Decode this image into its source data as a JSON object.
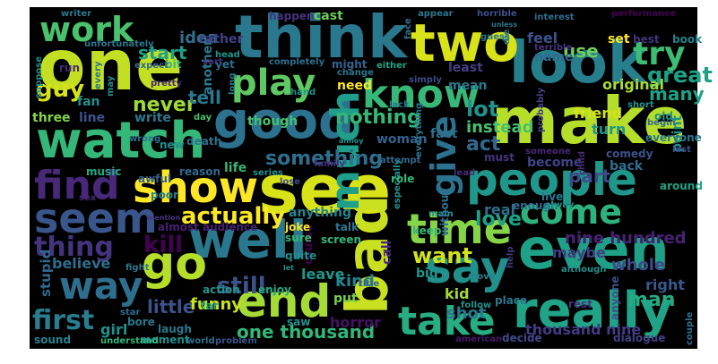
{
  "wordcloud": {
    "background": "#000000",
    "words": [
      {
        "text": "one",
        "color": "#c2df23"
      },
      {
        "text": "see",
        "color": "#d8e219"
      },
      {
        "text": "make",
        "color": "#b5de2b"
      },
      {
        "text": "think",
        "color": "#2a788e"
      },
      {
        "text": "look",
        "color": "#277f8e"
      },
      {
        "text": "watch",
        "color": "#35b779"
      },
      {
        "text": "good",
        "color": "#2c728e"
      },
      {
        "text": "two",
        "color": "#d8e219"
      },
      {
        "text": "bad",
        "color": "#c8e020"
      },
      {
        "text": "even",
        "color": "#1fa187"
      },
      {
        "text": "well",
        "color": "#2a788e"
      },
      {
        "text": "show",
        "color": "#fde725"
      },
      {
        "text": "really",
        "color": "#20a386"
      },
      {
        "text": "people",
        "color": "#1f988b"
      },
      {
        "text": "go",
        "color": "#b5de2b"
      },
      {
        "text": "time",
        "color": "#86d549"
      },
      {
        "text": "say",
        "color": "#21918c"
      },
      {
        "text": "end",
        "color": "#a5db36"
      },
      {
        "text": "take",
        "color": "#26ad81"
      },
      {
        "text": "seem",
        "color": "#39568c"
      },
      {
        "text": "way",
        "color": "#2e6e8e"
      },
      {
        "text": "find",
        "color": "#482878"
      },
      {
        "text": "work",
        "color": "#4ac16d"
      },
      {
        "text": "know",
        "color": "#37b878"
      },
      {
        "text": "play",
        "color": "#5ec962"
      },
      {
        "text": "much",
        "color": "#1f9e89"
      },
      {
        "text": "give",
        "color": "#2c728e"
      },
      {
        "text": "come",
        "color": "#2db27d"
      },
      {
        "text": "try",
        "color": "#3dbc74"
      },
      {
        "text": "thing",
        "color": "#46337e"
      },
      {
        "text": "first",
        "color": "#287d8e"
      },
      {
        "text": "kill",
        "color": "#440154"
      },
      {
        "text": "actually",
        "color": "#fde725"
      },
      {
        "text": "still",
        "color": "#3b528b"
      },
      {
        "text": "something",
        "color": "#2e6e8e"
      },
      {
        "text": "want",
        "color": "#d2e21b"
      },
      {
        "text": "love",
        "color": "#1fa187"
      },
      {
        "text": "nothing",
        "color": "#35b779"
      },
      {
        "text": "act",
        "color": "#31688e"
      },
      {
        "text": "lot",
        "color": "#21918c"
      },
      {
        "text": "part",
        "color": "#3e4a89"
      },
      {
        "text": "great",
        "color": "#1fa187"
      },
      {
        "text": "many",
        "color": "#1fa187"
      },
      {
        "text": "guy",
        "color": "#d8e219"
      },
      {
        "text": "never",
        "color": "#a0da39"
      },
      {
        "text": "tell",
        "color": "#2a788e"
      },
      {
        "text": "start",
        "color": "#1fa187"
      },
      {
        "text": "idea",
        "color": "#2e6e8e"
      },
      {
        "text": "use",
        "color": "#6ece58"
      },
      {
        "text": "feel",
        "color": "#3b528b"
      },
      {
        "text": "nine hundred",
        "color": "#482173"
      },
      {
        "text": "one thousand",
        "color": "#32b67a"
      },
      {
        "text": "thousand nine",
        "color": "#443983"
      },
      {
        "text": "man",
        "color": "#25ab82"
      },
      {
        "text": "little",
        "color": "#3b528b"
      },
      {
        "text": "kind",
        "color": "#26828e"
      },
      {
        "text": "whole",
        "color": "#3e4a89"
      },
      {
        "text": "right",
        "color": "#38598c"
      },
      {
        "text": "horror",
        "color": "#471164"
      },
      {
        "text": "believe",
        "color": "#2e6e8e"
      },
      {
        "text": "stupid",
        "color": "#31688e"
      },
      {
        "text": "girl",
        "color": "#21918c"
      },
      {
        "text": "funny",
        "color": "#c8e020"
      },
      {
        "text": "leave",
        "color": "#1f988b"
      },
      {
        "text": "put",
        "color": "#75d054"
      },
      {
        "text": "shot",
        "color": "#2a788e"
      },
      {
        "text": "kid",
        "color": "#a2da37"
      },
      {
        "text": "real",
        "color": "#2e6e8e"
      },
      {
        "text": "maybe",
        "color": "#433d84"
      },
      {
        "text": "instead",
        "color": "#46c06f"
      },
      {
        "text": "friend",
        "color": "#d5e21a"
      },
      {
        "text": "turn",
        "color": "#1f958b"
      },
      {
        "text": "original",
        "color": "#a8db34"
      },
      {
        "text": "mean",
        "color": "#29798e"
      },
      {
        "text": "least",
        "color": "#423f85"
      },
      {
        "text": "need",
        "color": "#fde725"
      },
      {
        "text": "another",
        "color": "#2a788e"
      },
      {
        "text": "though",
        "color": "#46c06f"
      },
      {
        "text": "woman",
        "color": "#34618d"
      },
      {
        "text": "fact",
        "color": "#2d708e"
      },
      {
        "text": "back",
        "color": "#2e6e8e"
      },
      {
        "text": "become",
        "color": "#414487"
      },
      {
        "text": "life",
        "color": "#35b779"
      },
      {
        "text": "anything",
        "color": "#25848e"
      },
      {
        "text": "three",
        "color": "#86d549"
      },
      {
        "text": "line",
        "color": "#3b528b"
      },
      {
        "text": "write",
        "color": "#2a788e"
      },
      {
        "text": "fan",
        "color": "#21918c"
      },
      {
        "text": "cast",
        "color": "#6ece58"
      },
      {
        "text": "happen",
        "color": "#46337e"
      },
      {
        "text": "name",
        "color": "#31688e"
      },
      {
        "text": "set",
        "color": "#fde725"
      },
      {
        "text": "best",
        "color": "#46337e"
      },
      {
        "text": "book",
        "color": "#26828e"
      },
      {
        "text": "point",
        "color": "#21918c"
      },
      {
        "text": "old",
        "color": "#21918c"
      },
      {
        "text": "call",
        "color": "#482878"
      },
      {
        "text": "big",
        "color": "#1f958b"
      },
      {
        "text": "laugh",
        "color": "#2a788e"
      },
      {
        "text": "bore",
        "color": "#2a788e"
      },
      {
        "text": "action",
        "color": "#1f958b"
      },
      {
        "text": "enjoy",
        "color": "#22a884"
      },
      {
        "text": "sound",
        "color": "#26828e"
      },
      {
        "text": "far",
        "color": "#22a884"
      },
      {
        "text": "moment",
        "color": "#228c8d"
      },
      {
        "text": "world",
        "color": "#2d708e"
      },
      {
        "text": "problem",
        "color": "#3b528b"
      },
      {
        "text": "american",
        "color": "#481a6c"
      },
      {
        "text": "decide",
        "color": "#3e4a89"
      },
      {
        "text": "dialogue",
        "color": "#424086"
      },
      {
        "text": "understand",
        "color": "#31b57b"
      },
      {
        "text": "couple",
        "color": "#2d708e"
      },
      {
        "text": "rest",
        "color": "#46337e"
      },
      {
        "text": "place",
        "color": "#2a788e"
      },
      {
        "text": "anyone",
        "color": "#3b528b"
      },
      {
        "text": "follow",
        "color": "#21918c"
      },
      {
        "text": "help",
        "color": "#453882"
      },
      {
        "text": "title",
        "color": "#31688e"
      },
      {
        "text": "move",
        "color": "#26828e"
      },
      {
        "text": "saw",
        "color": "#21918c"
      },
      {
        "text": "screen",
        "color": "#35b779"
      },
      {
        "text": "talk",
        "color": "#2a788e"
      },
      {
        "text": "course",
        "color": "#440154"
      },
      {
        "text": "main",
        "color": "#1f958b"
      },
      {
        "text": "joke",
        "color": "#fde725"
      },
      {
        "text": "sure",
        "color": "#38b977"
      },
      {
        "text": "quite",
        "color": "#21918c"
      },
      {
        "text": "keep",
        "color": "#35b779"
      },
      {
        "text": "almost audience",
        "color": "#482173"
      },
      {
        "text": "music",
        "color": "#22a884"
      },
      {
        "text": "awful",
        "color": "#34618d"
      },
      {
        "text": "reason",
        "color": "#31688e"
      },
      {
        "text": "series",
        "color": "#21918c"
      },
      {
        "text": "lose",
        "color": "#3e4a89"
      },
      {
        "text": "family",
        "color": "#472d7b"
      },
      {
        "text": "poor",
        "color": "#26828e"
      },
      {
        "text": "death",
        "color": "#2c728e"
      },
      {
        "text": "new",
        "color": "#21918c"
      },
      {
        "text": "live",
        "color": "#2a788e"
      },
      {
        "text": "enough",
        "color": "#2e6e8e"
      },
      {
        "text": "comedy",
        "color": "#3b528b"
      },
      {
        "text": "around",
        "color": "#20a386"
      },
      {
        "text": "everyone",
        "color": "#2a788e"
      },
      {
        "text": "last",
        "color": "#3e4a89"
      },
      {
        "text": "child",
        "color": "#482878"
      },
      {
        "text": "alway",
        "color": "#21918c"
      },
      {
        "text": "probably",
        "color": "#424086"
      },
      {
        "text": "begin",
        "color": "#31688e"
      },
      {
        "text": "must",
        "color": "#46337e"
      },
      {
        "text": "everything",
        "color": "#2a788e"
      },
      {
        "text": "someone",
        "color": "#482878"
      },
      {
        "text": "especially",
        "color": "#21918c"
      },
      {
        "text": "without",
        "color": "#2e6e8e"
      },
      {
        "text": "lead",
        "color": "#472d7b"
      },
      {
        "text": "role",
        "color": "#35b779"
      },
      {
        "text": "might",
        "color": "#34618d"
      },
      {
        "text": "change",
        "color": "#2a788e"
      },
      {
        "text": "either",
        "color": "#20a386"
      },
      {
        "text": "completely",
        "color": "#2c728e"
      },
      {
        "text": "simply",
        "color": "#3e4a89"
      },
      {
        "text": "short",
        "color": "#21918c"
      },
      {
        "text": "terrible",
        "color": "#46337e"
      },
      {
        "text": "guess",
        "color": "#2a788e"
      },
      {
        "text": "face",
        "color": "#2e6e8e"
      },
      {
        "text": "interest",
        "color": "#2d708e"
      },
      {
        "text": "appear",
        "color": "#2a788e"
      },
      {
        "text": "performance",
        "color": "#440154"
      },
      {
        "text": "horrible",
        "color": "#3b528b"
      },
      {
        "text": "writer",
        "color": "#2a788e"
      },
      {
        "text": "rather",
        "color": "#424086"
      },
      {
        "text": "bit",
        "color": "#35b779"
      },
      {
        "text": "yet",
        "color": "#2e6e8e"
      },
      {
        "text": "expect",
        "color": "#31688e"
      },
      {
        "text": "unfortunately",
        "color": "#2a788e"
      },
      {
        "text": "head",
        "color": "#1f958b"
      },
      {
        "text": "pretty",
        "color": "#482878"
      },
      {
        "text": "suppose",
        "color": "#21918c"
      },
      {
        "text": "every",
        "color": "#2a788e"
      },
      {
        "text": "run",
        "color": "#482878"
      },
      {
        "text": "may",
        "color": "#21918c"
      },
      {
        "text": "wrong",
        "color": "#2c728e"
      },
      {
        "text": "long",
        "color": "#2a788e"
      },
      {
        "text": "day",
        "color": "#46c06f"
      },
      {
        "text": "hand",
        "color": "#21918c"
      },
      {
        "text": "sex",
        "color": "#482878"
      },
      {
        "text": "mention",
        "color": "#46337e"
      },
      {
        "text": "fight",
        "color": "#2a788e"
      },
      {
        "text": "star",
        "color": "#2e6e8e"
      },
      {
        "text": "lack",
        "color": "#2a788e"
      },
      {
        "text": "attempt",
        "color": "#31688e"
      },
      {
        "text": "annoy",
        "color": "#21918c"
      },
      {
        "text": "case",
        "color": "#2a788e"
      },
      {
        "text": "let",
        "color": "#21918c"
      },
      {
        "text": "die",
        "color": "#2a788e"
      },
      {
        "text": "sort",
        "color": "#46337e"
      },
      {
        "text": "although",
        "color": "#21918c"
      },
      {
        "text": "unless",
        "color": "#2a788e"
      }
    ]
  }
}
